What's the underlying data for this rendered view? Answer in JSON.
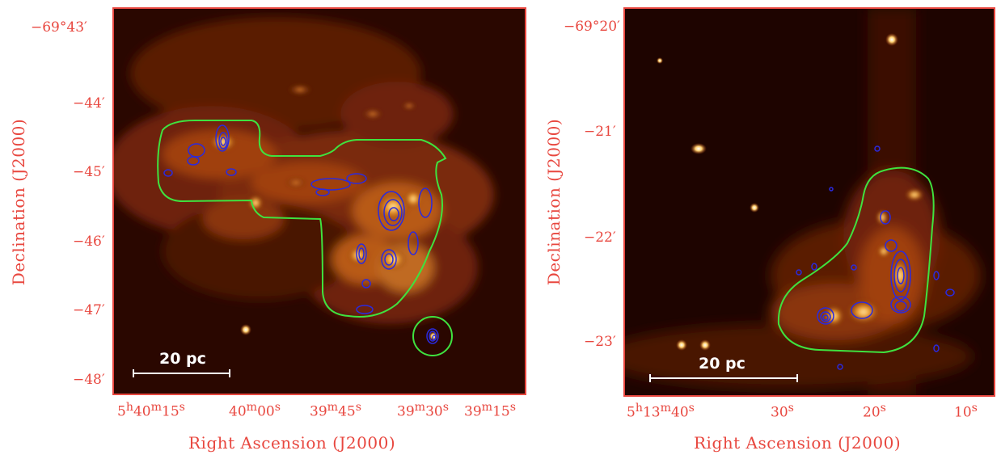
{
  "left_panel": {
    "x_ticks": [
      "5h40m15s",
      "40m00s",
      "39m45s",
      "39m30s",
      "39m15s"
    ],
    "x_ticks_display": [
      {
        "main": "5",
        "sup1": "h",
        "mid": "40",
        "sup2": "m",
        "end": "15",
        "sup3": "s"
      },
      {
        "main": "",
        "sup1": "",
        "mid": "40",
        "sup2": "m",
        "end": "00",
        "sup3": "s"
      },
      {
        "main": "",
        "sup1": "",
        "mid": "39",
        "sup2": "m",
        "end": "45",
        "sup3": "s"
      },
      {
        "main": "",
        "sup1": "",
        "mid": "39",
        "sup2": "m",
        "end": "30",
        "sup3": "s"
      },
      {
        "main": "",
        "sup1": "",
        "mid": "39",
        "sup2": "m",
        "end": "15",
        "sup3": "s"
      }
    ],
    "y_ticks": [
      "−69°43′",
      "−44′",
      "−45′",
      "−46′",
      "−47′",
      "−48′"
    ],
    "xlabel": "Right Ascension (J2000)",
    "ylabel": "Declination (J2000)",
    "scale_bar_label": "20 pc"
  },
  "right_panel": {
    "x_ticks": [
      "5h13m40s",
      "30s",
      "20s",
      "10s"
    ],
    "x_ticks_display": [
      {
        "main": "5",
        "sup1": "h",
        "mid": "13",
        "sup2": "m",
        "end": "40",
        "sup3": "s"
      },
      {
        "main": "",
        "sup1": "",
        "mid": "",
        "sup2": "",
        "end": "30",
        "sup3": "s"
      },
      {
        "main": "",
        "sup1": "",
        "mid": "",
        "sup2": "",
        "end": "20",
        "sup3": "s"
      },
      {
        "main": "",
        "sup1": "",
        "mid": "",
        "sup2": "",
        "end": "10",
        "sup3": "s"
      }
    ],
    "y_ticks": [
      "−69°20′",
      "−21′",
      "−22′",
      "−23′"
    ],
    "xlabel": "Right Ascension (J2000)",
    "ylabel": "Declination (J2000)",
    "scale_bar_label": "20 pc"
  },
  "colors": {
    "axis": "#e8473f",
    "contour": "#2a2adf",
    "region": "#3fe23f",
    "scale_bar": "#ffffff"
  }
}
